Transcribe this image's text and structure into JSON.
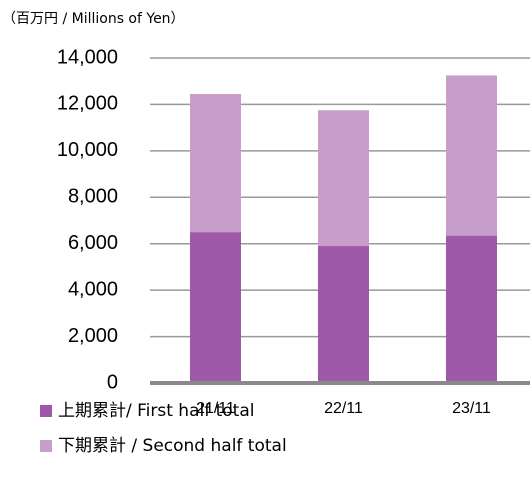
{
  "chart_data": {
    "type": "stacked_bar",
    "unit_label": "（百万円 / Millions of Yen）",
    "categories": [
      "21/11",
      "22/11",
      "23/11"
    ],
    "series": [
      {
        "name": "上期累計/ First half total",
        "color": "#9e5aa9",
        "values": [
          6500,
          5900,
          6350
        ]
      },
      {
        "name": "下期累計 / Second half total",
        "color": "#c79dcb",
        "values": [
          5950,
          5850,
          6900
        ]
      }
    ],
    "ylim": [
      0,
      14000
    ],
    "yticks": [
      0,
      {
        "value": 2000,
        "label": "2,000"
      },
      {
        "value": 4000,
        "label": "4,000"
      },
      {
        "value": 6000,
        "label": "6,000"
      },
      {
        "value": 8000,
        "label": "8,000"
      },
      {
        "value": 10000,
        "label": "10,000"
      },
      {
        "value": 12000,
        "label": "12,000"
      },
      {
        "value": 14000,
        "label": "14,000"
      }
    ],
    "grid": true
  }
}
